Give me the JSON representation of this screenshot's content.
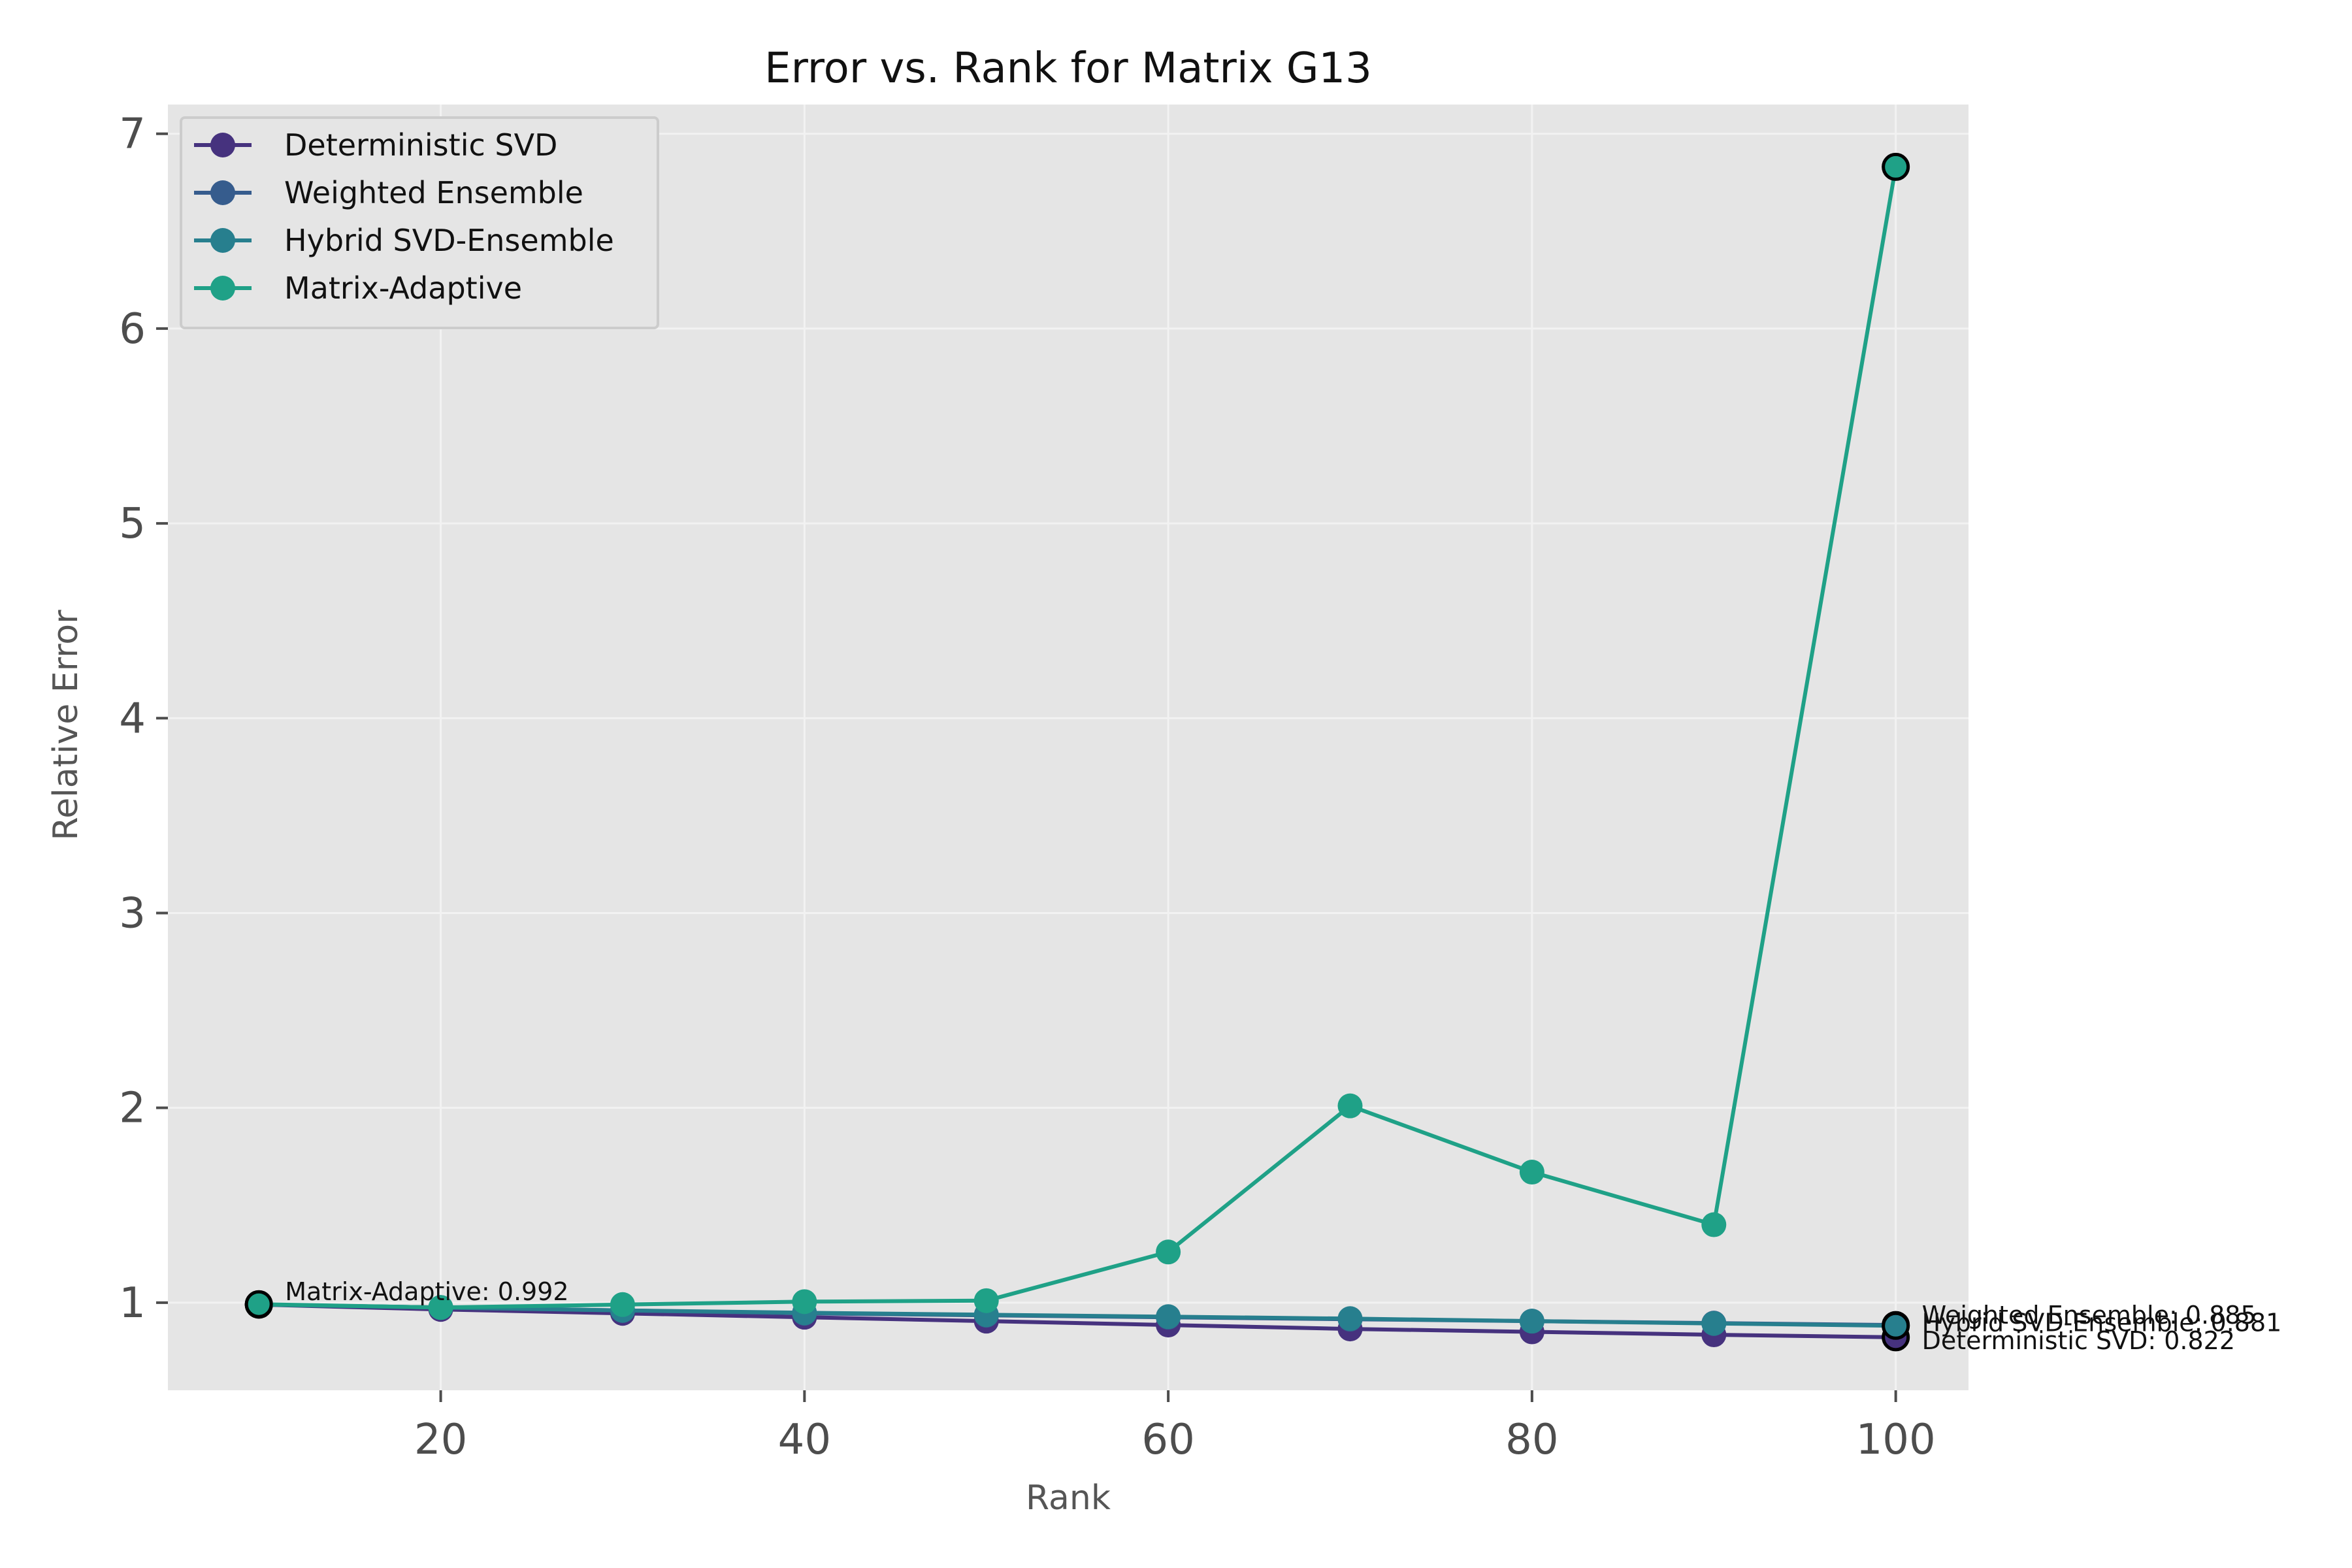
{
  "chart_data": {
    "type": "line",
    "title": "Error vs. Rank for Matrix G13",
    "xlabel": "Rank",
    "ylabel": "Relative Error",
    "x": [
      10,
      20,
      30,
      40,
      50,
      60,
      70,
      80,
      90,
      100
    ],
    "xlim": [
      5,
      104
    ],
    "ylim": [
      0.55,
      7.15
    ],
    "xticks": [
      20,
      40,
      60,
      80,
      100
    ],
    "yticks": [
      1,
      2,
      3,
      4,
      5,
      6,
      7
    ],
    "grid": true,
    "legend_position": "top-left",
    "series": [
      {
        "name": "Deterministic SVD",
        "color": "#46327e",
        "values": [
          0.99,
          0.965,
          0.945,
          0.925,
          0.905,
          0.885,
          0.865,
          0.85,
          0.835,
          0.822
        ]
      },
      {
        "name": "Weighted Ensemble",
        "color": "#365c8d",
        "values": [
          0.99,
          0.975,
          0.96,
          0.945,
          0.935,
          0.925,
          0.915,
          0.905,
          0.895,
          0.885
        ]
      },
      {
        "name": "Hybrid SVD-Ensemble",
        "color": "#277f8e",
        "values": [
          0.99,
          0.975,
          0.96,
          0.948,
          0.938,
          0.928,
          0.918,
          0.905,
          0.893,
          0.881
        ]
      },
      {
        "name": "Matrix-Adaptive",
        "color": "#1fa187",
        "values": [
          0.992,
          0.975,
          0.99,
          1.005,
          1.01,
          1.26,
          2.01,
          1.67,
          1.4,
          6.83
        ]
      }
    ],
    "annotations": [
      {
        "text": "Matrix-Adaptive: 0.992",
        "x": 10,
        "y": 0.992
      },
      {
        "text": "Weighted Ensemble: 0.885",
        "x": 100,
        "y": 0.885
      },
      {
        "text": "Hybrid SVD-Ensemble: 0.881",
        "x": 100,
        "y": 0.881
      },
      {
        "text": "Deterministic SVD: 0.822",
        "x": 100,
        "y": 0.822
      }
    ]
  },
  "colors": {
    "plot_background": "#e5e5e5",
    "grid": "#f2f2f2",
    "axis_text": "#4d4d4d"
  }
}
